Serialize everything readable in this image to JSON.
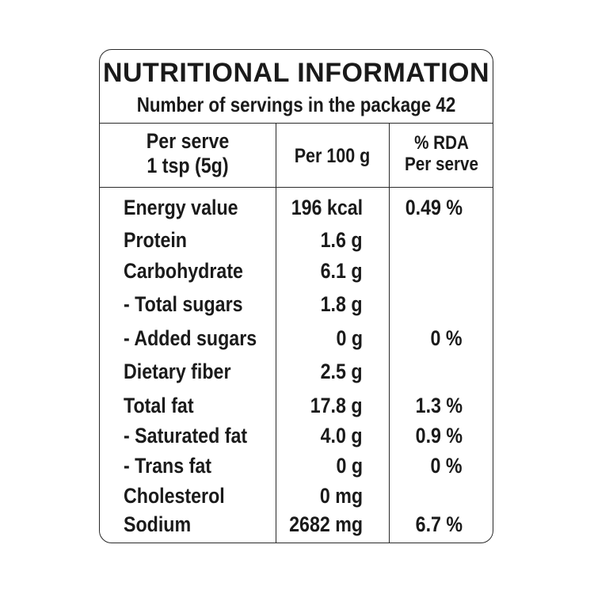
{
  "label": {
    "title": "NUTRITIONAL INFORMATION",
    "servings_text": "Number of servings in the package 42",
    "headers": {
      "per_serve_line1": "Per serve",
      "per_serve_line2": "1 tsp (5g)",
      "per_100g": "Per 100 g",
      "rda_line1": "% RDA",
      "rda_line2": "Per serve"
    },
    "rows": [
      {
        "name": "Energy value",
        "per100": "196 kcal",
        "rda": "0.49 %"
      },
      {
        "name": "Protein",
        "per100": "1.6 g",
        "rda": ""
      },
      {
        "name": "Carbohydrate",
        "per100": "6.1 g",
        "rda": ""
      },
      {
        "name": "- Total sugars",
        "per100": "1.8 g",
        "rda": ""
      },
      {
        "name": "- Added sugars",
        "per100": "0 g",
        "rda": "0 %"
      },
      {
        "name": "Dietary fiber",
        "per100": "2.5 g",
        "rda": ""
      },
      {
        "name": "Total fat",
        "per100": "17.8 g",
        "rda": "1.3 %"
      },
      {
        "name": "- Saturated fat",
        "per100": "4.0 g",
        "rda": "0.9 %"
      },
      {
        "name": "- Trans fat",
        "per100": "0 g",
        "rda": "0 %"
      },
      {
        "name": "Cholesterol",
        "per100": "0 mg",
        "rda": ""
      },
      {
        "name": "Sodium",
        "per100": "2682 mg",
        "rda": "6.7 %"
      }
    ]
  }
}
